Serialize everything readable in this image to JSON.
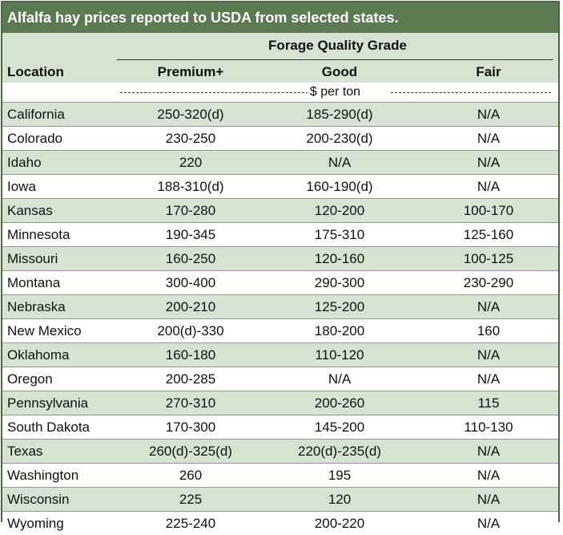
{
  "title": "Alfalfa hay prices reported to USDA from selected states.",
  "group_header": "Forage Quality Grade",
  "headers": {
    "location": "Location",
    "premium": "Premium+",
    "good": "Good",
    "fair": "Fair"
  },
  "units": "$ per ton",
  "chart_data": {
    "type": "table",
    "title": "Alfalfa hay prices reported to USDA from selected states.",
    "columns": [
      "Location",
      "Premium+",
      "Good",
      "Fair"
    ],
    "rows": [
      [
        "California",
        "250-320(d)",
        "185-290(d)",
        "N/A"
      ],
      [
        "Colorado",
        "230-250",
        "200-230(d)",
        "N/A"
      ],
      [
        "Idaho",
        "220",
        "N/A",
        "N/A"
      ],
      [
        "Iowa",
        "188-310(d)",
        "160-190(d)",
        "N/A"
      ],
      [
        "Kansas",
        "170-280",
        "120-200",
        "100-170"
      ],
      [
        "Minnesota",
        "190-345",
        "175-310",
        "125-160"
      ],
      [
        "Missouri",
        "160-250",
        "120-160",
        "100-125"
      ],
      [
        "Montana",
        "300-400",
        "290-300",
        "230-290"
      ],
      [
        "Nebraska",
        "200-210",
        "125-200",
        "N/A"
      ],
      [
        "New Mexico",
        "200(d)-330",
        "180-200",
        "160"
      ],
      [
        "Oklahoma",
        "160-180",
        "110-120",
        "N/A"
      ],
      [
        "Oregon",
        "200-285",
        "N/A",
        "N/A"
      ],
      [
        "Pennsylvania",
        "270-310",
        "200-260",
        "115"
      ],
      [
        "South Dakota",
        "170-300",
        "145-200",
        "110-130"
      ],
      [
        "Texas",
        "260(d)-325(d)",
        "220(d)-235(d)",
        "N/A"
      ],
      [
        "Washington",
        "260",
        "195",
        "N/A"
      ],
      [
        "Wisconsin",
        "225",
        "120",
        "N/A"
      ],
      [
        "Wyoming",
        "225-240",
        "200-220",
        "N/A"
      ]
    ]
  }
}
